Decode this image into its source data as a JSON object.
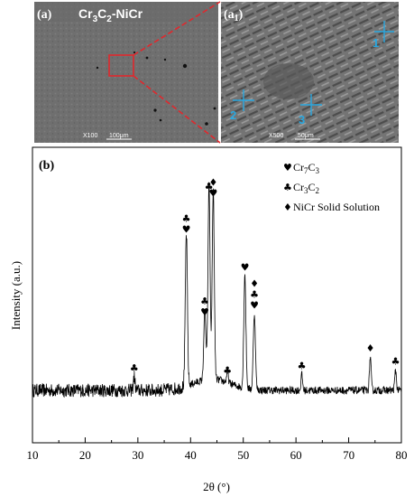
{
  "panels": {
    "a": {
      "label": "(a)",
      "title_main": "Cr",
      "title_sub1": "3",
      "title_mid": "C",
      "title_sub2": "2",
      "title_tail": "-NiCr",
      "magnification": "X100",
      "scale": "100μm"
    },
    "a1": {
      "label_open": "(a",
      "label_sub": "1",
      "label_close": ")",
      "magnification": "X500",
      "scale": "50μm",
      "markers": [
        "1",
        "2",
        "3"
      ]
    },
    "b": {
      "label": "(b)"
    }
  },
  "colors": {
    "zoom_box": "#e0282d",
    "marker": "#2aa8e0",
    "line": "#000000"
  },
  "chart_data": {
    "type": "line",
    "xlabel": "2θ (°)",
    "ylabel": "Intensity (a.u.)",
    "xlim": [
      10,
      80
    ],
    "x_ticks": [
      "10",
      "20",
      "30",
      "40",
      "50",
      "60",
      "70",
      "80"
    ],
    "grid": false,
    "legend_position": "top-right",
    "legend": [
      {
        "symbol": "♥",
        "main": "Cr",
        "sub1": "7",
        "mid": "C",
        "sub2": "3",
        "tail": ""
      },
      {
        "symbol": "♣",
        "main": "Cr",
        "sub1": "3",
        "mid": "C",
        "sub2": "2",
        "tail": ""
      },
      {
        "symbol": "♦",
        "main": "NiCr Solid Solution",
        "sub1": "",
        "mid": "",
        "sub2": "",
        "tail": ""
      }
    ],
    "peaks": [
      {
        "x": 29.3,
        "height": 0.06,
        "symbols": "♣"
      },
      {
        "x": 39.2,
        "height": 0.68,
        "symbols": "♣♥"
      },
      {
        "x": 42.7,
        "height": 0.31,
        "symbols": "♣♥"
      },
      {
        "x": 43.5,
        "height": 0.87,
        "symbols": "♣"
      },
      {
        "x": 44.3,
        "height": 0.84,
        "symbols": "♦♥"
      },
      {
        "x": 47.0,
        "height": 0.05,
        "symbols": "♣"
      },
      {
        "x": 50.3,
        "height": 0.51,
        "symbols": "♥"
      },
      {
        "x": 52.1,
        "height": 0.34,
        "symbols": "♦♣♥"
      },
      {
        "x": 61.1,
        "height": 0.07,
        "symbols": "♣"
      },
      {
        "x": 74.1,
        "height": 0.15,
        "symbols": "♦"
      },
      {
        "x": 78.9,
        "height": 0.09,
        "symbols": "♣"
      }
    ]
  }
}
